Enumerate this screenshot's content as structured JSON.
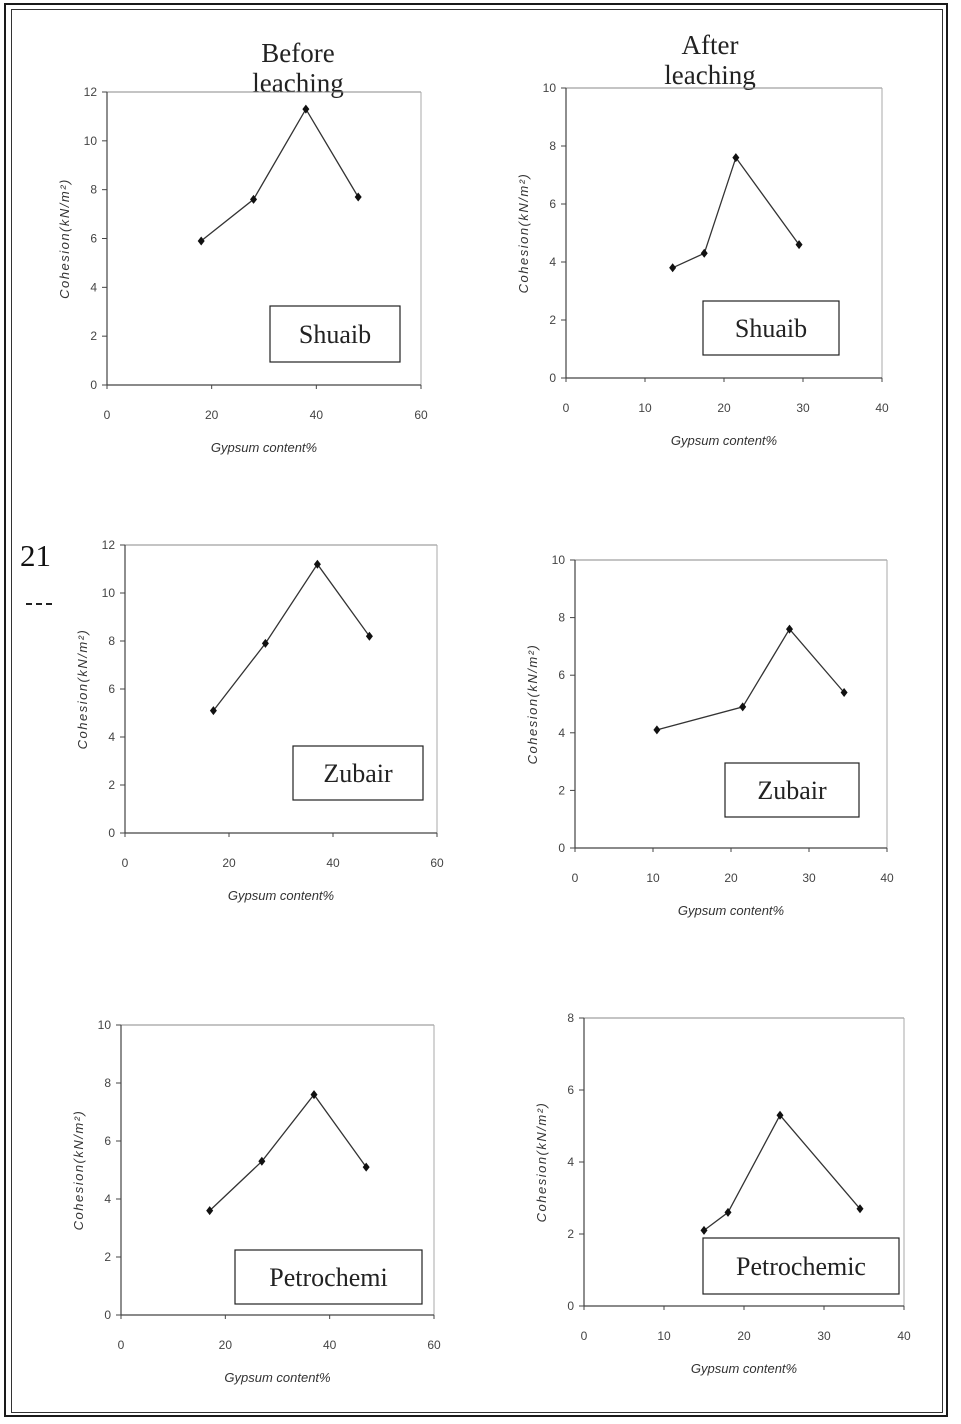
{
  "headers": {
    "before": "Before leaching",
    "after": "After leaching"
  },
  "margin_text": "21",
  "chart_data": [
    {
      "type": "line",
      "xlabel": "Gypsum content%",
      "ylabel": "Cohesion(kN/m²)",
      "label": "Shuaib",
      "xlim": [
        0,
        60
      ],
      "ylim": [
        0,
        12
      ],
      "xticks": [
        0,
        20,
        40,
        60
      ],
      "yticks": [
        0,
        2,
        4,
        6,
        8,
        10,
        12
      ],
      "x": [
        18,
        28,
        38,
        48
      ],
      "y": [
        5.9,
        7.6,
        11.3,
        7.7
      ]
    },
    {
      "type": "line",
      "xlabel": "Gypsum content%",
      "ylabel": "Cohesion(kN/m²)",
      "label": "Shuaib",
      "xlim": [
        0,
        40
      ],
      "ylim": [
        0,
        10
      ],
      "xticks": [
        0,
        10,
        20,
        30,
        40
      ],
      "yticks": [
        0,
        2,
        4,
        6,
        8,
        10
      ],
      "x": [
        13.5,
        17.5,
        21.5,
        29.5
      ],
      "y": [
        3.8,
        4.3,
        7.6,
        4.6
      ]
    },
    {
      "type": "line",
      "xlabel": "Gypsum content%",
      "ylabel": "Cohesion(kN/m²)",
      "label": "Zubair",
      "xlim": [
        0,
        60
      ],
      "ylim": [
        0,
        12
      ],
      "xticks": [
        0,
        20,
        40,
        60
      ],
      "yticks": [
        0,
        2,
        4,
        6,
        8,
        10,
        12
      ],
      "x": [
        17,
        27,
        37,
        47
      ],
      "y": [
        5.1,
        7.9,
        11.2,
        8.2
      ]
    },
    {
      "type": "line",
      "xlabel": "Gypsum content%",
      "ylabel": "Cohesion(kN/m²)",
      "label": "Zubair",
      "xlim": [
        0,
        40
      ],
      "ylim": [
        0,
        10
      ],
      "xticks": [
        0,
        10,
        20,
        30,
        40
      ],
      "yticks": [
        0,
        2,
        4,
        6,
        8,
        10
      ],
      "x": [
        10.5,
        21.5,
        27.5,
        34.5
      ],
      "y": [
        4.1,
        4.9,
        7.6,
        5.4
      ]
    },
    {
      "type": "line",
      "xlabel": "Gypsum content%",
      "ylabel": "Cohesion(kN/m²)",
      "label": "Petrochemi",
      "xlim": [
        0,
        60
      ],
      "ylim": [
        0,
        10
      ],
      "xticks": [
        0,
        20,
        40,
        60
      ],
      "yticks": [
        0,
        2,
        4,
        6,
        8,
        10
      ],
      "x": [
        17,
        27,
        37,
        47
      ],
      "y": [
        3.6,
        5.3,
        7.6,
        5.1
      ]
    },
    {
      "type": "line",
      "xlabel": "Gypsum content%",
      "ylabel": "Cohesion(kN/m²)",
      "label": "Petrochemic",
      "xlim": [
        0,
        40
      ],
      "ylim": [
        0,
        8
      ],
      "xticks": [
        0,
        10,
        20,
        30,
        40
      ],
      "yticks": [
        0,
        2,
        4,
        6,
        8
      ],
      "x": [
        15,
        18,
        24.5,
        34.5
      ],
      "y": [
        2.1,
        2.6,
        5.3,
        2.7
      ]
    }
  ]
}
